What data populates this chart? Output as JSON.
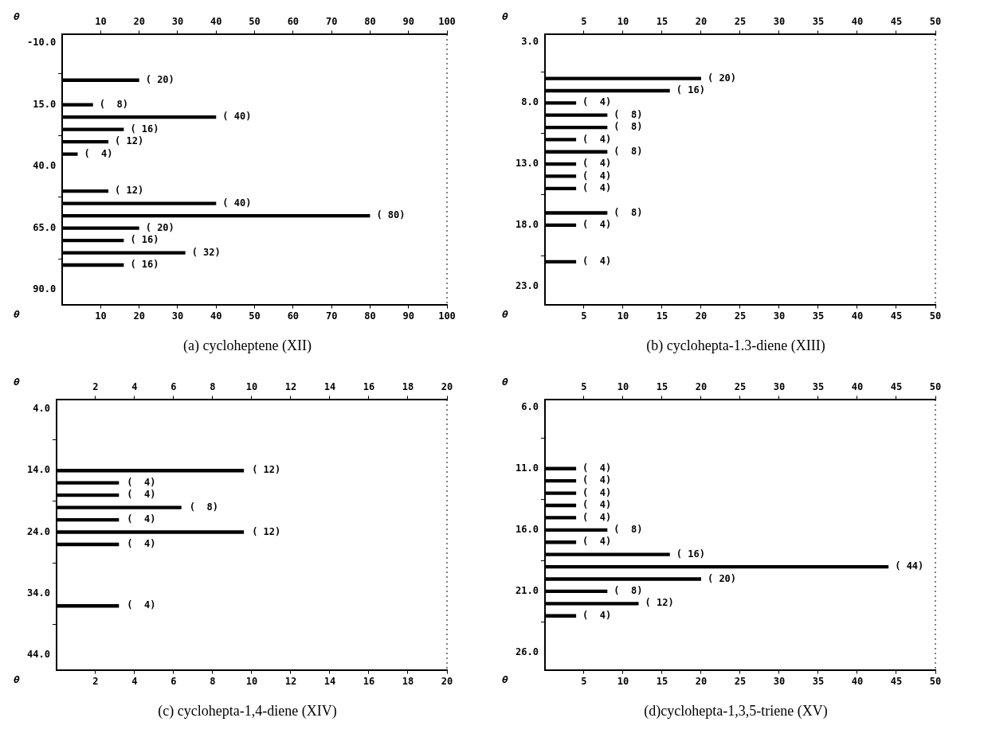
{
  "chart_data": [
    {
      "type": "bar",
      "orientation": "horizontal",
      "title": "(a)  cycloheptene (XII)",
      "ylabel": "θ",
      "xlabel": "θ",
      "color": "#000000",
      "x": [
        5,
        15,
        20,
        25,
        30,
        35,
        50,
        55,
        60,
        65,
        70,
        75,
        80
      ],
      "values": [
        20,
        8,
        40,
        16,
        12,
        4,
        12,
        40,
        80,
        20,
        16,
        32,
        16
      ],
      "value_labels": [
        "( 20)",
        "(  8)",
        "( 40)",
        "( 16)",
        "( 12)",
        "(  4)",
        "( 12)",
        "( 40)",
        "( 80)",
        "( 20)",
        "( 16)",
        "( 32)",
        "( 16)"
      ],
      "xlim": [
        0,
        100
      ],
      "xticks": [
        10,
        20,
        30,
        40,
        50,
        60,
        70,
        80,
        90,
        100
      ],
      "x2lim": [
        0,
        100
      ],
      "x2ticks": [
        10,
        20,
        30,
        40,
        50,
        60,
        70,
        80,
        90,
        100
      ],
      "ylim": [
        96,
        -13.5
      ],
      "yticks": [
        {
          "value": -10,
          "label": "-10.0"
        },
        {
          "value": 15,
          "label": "15.0"
        },
        {
          "value": 40,
          "label": "40.0"
        },
        {
          "value": 65,
          "label": "65.0"
        },
        {
          "value": 90,
          "label": "90.0"
        }
      ]
    },
    {
      "type": "bar",
      "orientation": "horizontal",
      "title": "(b)  cyclohepta-1.3-diene (XIII)",
      "ylabel": "θ",
      "xlabel": "θ",
      "color": "#000000",
      "x": [
        6,
        7,
        8,
        9,
        10,
        11,
        12,
        13,
        14,
        15,
        17,
        18,
        21
      ],
      "values": [
        20,
        16,
        4,
        8,
        8,
        4,
        8,
        4,
        4,
        4,
        8,
        4,
        4
      ],
      "value_labels": [
        "( 20)",
        "( 16)",
        "(  4)",
        "(  8)",
        "(  8)",
        "(  4)",
        "(  8)",
        "(  4)",
        "(  4)",
        "(  4)",
        "(  8)",
        "(  4)",
        "(  4)"
      ],
      "xlim": [
        0,
        50
      ],
      "xticks": [
        5,
        10,
        15,
        20,
        25,
        30,
        35,
        40,
        45,
        50
      ],
      "x2lim": [
        0,
        50
      ],
      "x2ticks": [
        5,
        10,
        15,
        20,
        25,
        30,
        35,
        40,
        45,
        50
      ],
      "ylim": [
        24.5,
        2.4
      ],
      "yticks": [
        {
          "value": 3,
          "label": "3.0"
        },
        {
          "value": 8,
          "label": "8.0"
        },
        {
          "value": 13,
          "label": "13.0"
        },
        {
          "value": 18,
          "label": "18.0"
        },
        {
          "value": 23,
          "label": "23.0"
        }
      ]
    },
    {
      "type": "bar",
      "orientation": "horizontal",
      "title": "(c) cyclohepta-1,4-diene (XIV)",
      "ylabel": "θ",
      "xlabel": "θ",
      "color": "#000000",
      "x": [
        14,
        16,
        18,
        20,
        22,
        24,
        26,
        36
      ],
      "values": [
        9.6,
        3.2,
        3.2,
        6.4,
        3.2,
        9.6,
        3.2,
        3.2
      ],
      "annotations": [
        {
          "text": "( 12)",
          "x": 9.6,
          "y": 14
        },
        {
          "text": "(  4)",
          "x": 3.2,
          "y": 16
        },
        {
          "text": "(  4)",
          "x": 3.2,
          "y": 18
        },
        {
          "text": "(  8)",
          "x": 6.4,
          "y": 20
        },
        {
          "text": "(  4)",
          "x": 3.2,
          "y": 22
        },
        {
          "text": "( 12)",
          "x": 9.6,
          "y": 24
        },
        {
          "text": "(  4)",
          "x": 3.2,
          "y": 26
        },
        {
          "text": "(  4)",
          "x": 3.2,
          "y": 36
        }
      ],
      "xlim": [
        0,
        20
      ],
      "xticks": [
        2,
        4,
        6,
        8,
        10,
        12,
        14,
        16,
        18,
        20
      ],
      "x2lim": [
        0,
        20
      ],
      "x2ticks": [
        2,
        4,
        6,
        8,
        10,
        12,
        14,
        16,
        18,
        20
      ],
      "ylim": [
        46.4,
        2.5
      ],
      "yticks": [
        {
          "value": 4,
          "label": "4.0"
        },
        {
          "value": 14,
          "label": "14.0"
        },
        {
          "value": 24,
          "label": "24.0"
        },
        {
          "value": 34,
          "label": "34.0"
        },
        {
          "value": 44,
          "label": "44.0"
        }
      ]
    },
    {
      "type": "bar",
      "orientation": "horizontal",
      "title": "(d)cyclohepta-1,3,5-triene (XV)",
      "ylabel": "θ",
      "xlabel": "θ",
      "color": "#000000",
      "x": [
        11,
        12,
        13,
        14,
        15,
        16,
        17,
        18,
        19,
        20,
        21,
        22,
        23
      ],
      "values": [
        4,
        4,
        4,
        4,
        4,
        8,
        4,
        16,
        44,
        20,
        8,
        12,
        4
      ],
      "value_labels": [
        "(  4)",
        "(  4)",
        "(  4)",
        "(  4)",
        "(  4)",
        "(  8)",
        "(  4)",
        "( 16)",
        "( 44)",
        "( 20)",
        "(  8)",
        "( 12)",
        "(  4)"
      ],
      "xlim": [
        0,
        50
      ],
      "xticks": [
        5,
        10,
        15,
        20,
        25,
        30,
        35,
        40,
        45,
        50
      ],
      "x2lim": [
        0,
        50
      ],
      "x2ticks": [
        5,
        10,
        15,
        20,
        25,
        30,
        35,
        40,
        45,
        50
      ],
      "ylim": [
        27.4,
        5.4
      ],
      "yticks": [
        {
          "value": 6,
          "label": "6.0"
        },
        {
          "value": 11,
          "label": "11.0"
        },
        {
          "value": 16,
          "label": "16.0"
        },
        {
          "value": 21,
          "label": "21.0"
        },
        {
          "value": 26,
          "label": "26.0"
        }
      ]
    }
  ]
}
